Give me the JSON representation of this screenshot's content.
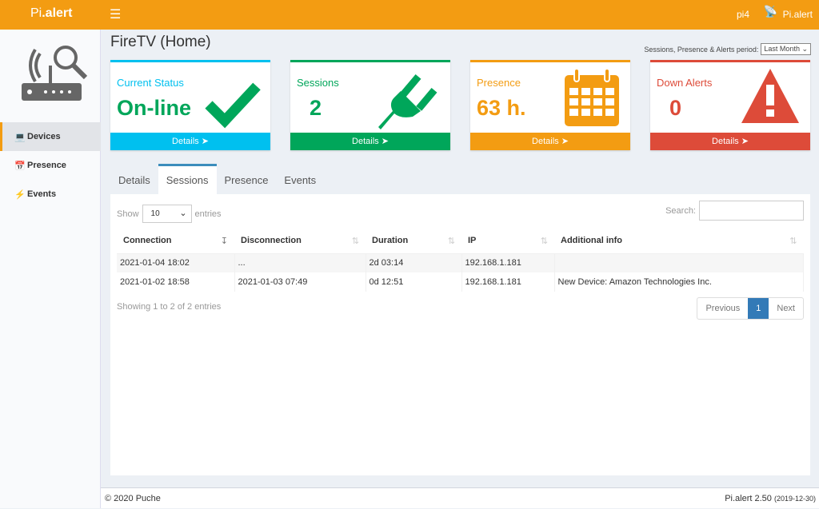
{
  "header": {
    "logo_pre": "Pi",
    "logo_post": ".alert",
    "menu_icon": "hamburger-icon",
    "host": "pi4",
    "user": "Pi.alert"
  },
  "sidebar": {
    "items": [
      {
        "label": "Devices",
        "icon": "laptop-icon",
        "active": true
      },
      {
        "label": "Presence",
        "icon": "calendar-icon"
      },
      {
        "label": "Events",
        "icon": "bolt-icon"
      }
    ]
  },
  "page": {
    "title": "FireTV (Home)",
    "period_label": "Sessions, Presence & Alerts period:",
    "period_value": "Last Month"
  },
  "cards": [
    {
      "label": "Current Status",
      "value": "On-line",
      "footer": "Details",
      "color": "#00c0ef",
      "text": "#00a65a",
      "icon": "check-icon"
    },
    {
      "label": "Sessions",
      "value": "2",
      "footer": "Details",
      "color": "#00a65a",
      "text": "#00a65a",
      "icon": "plug-icon"
    },
    {
      "label": "Presence",
      "value": "63 h.",
      "footer": "Details",
      "color": "#f39c12",
      "text": "#f39c12",
      "icon": "calendar-icon"
    },
    {
      "label": "Down Alerts",
      "value": "0",
      "footer": "Details",
      "color": "#dd4b39",
      "text": "#dd4b39",
      "icon": "warning-icon"
    }
  ],
  "tabs": [
    "Details",
    "Sessions",
    "Presence",
    "Events"
  ],
  "table": {
    "show": "Show",
    "length": "10",
    "entries": "entries",
    "search": "Search:",
    "columns": [
      "Connection",
      "Disconnection",
      "Duration",
      "IP",
      "Additional info"
    ],
    "rows": [
      [
        "2021-01-04  18:02",
        "...",
        "2d  03:14",
        "192.168.1.181",
        ""
      ],
      [
        "2021-01-02  18:58",
        "2021-01-03  07:49",
        "0d  12:51",
        "192.168.1.181",
        "New Device:  Amazon Technologies Inc."
      ]
    ],
    "info": "Showing 1 to 2 of 2 entries",
    "prev": "Previous",
    "page": "1",
    "next": "Next"
  },
  "footer": {
    "copyright": "© 2020 Puche",
    "version": "Pi.alert  2.50",
    "date": "(2019-12-30)"
  }
}
